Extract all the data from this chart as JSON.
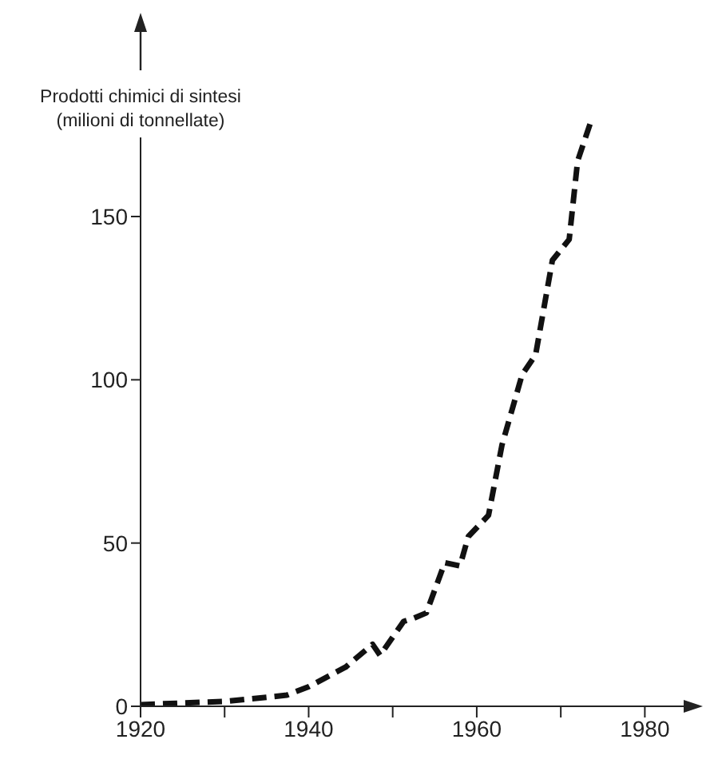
{
  "chart_data": {
    "type": "line",
    "ylabel": "Prodotti chimici di sintesi\n(milioni di tonnellate)",
    "x": [
      1920,
      1930,
      1937.4,
      1940,
      1944.4,
      1947.6,
      1948.5,
      1951.3,
      1952.5,
      1954,
      1956.2,
      1958,
      1959,
      1961.4,
      1963,
      1965,
      1965.4,
      1967,
      1969,
      1971,
      1972,
      1973.7
    ],
    "series": [
      {
        "color": "#111111",
        "values": [
          0.5,
          1.5,
          3.4,
          6,
          12,
          19,
          15.6,
          26,
          27,
          28.6,
          44,
          43,
          52,
          58.5,
          80,
          98,
          101.6,
          107.6,
          136.6,
          143,
          167,
          180
        ]
      }
    ],
    "xlim": [
      1920,
      1985
    ],
    "xticks": [
      1920,
      {
        "value": 1930,
        "label": null
      },
      1940,
      {
        "value": 1950,
        "label": null
      },
      1960,
      {
        "value": 1970,
        "label": null
      },
      1980
    ],
    "ylim": [
      0,
      185
    ],
    "yticks": [
      0,
      50,
      100,
      150
    ],
    "grid": false,
    "legend": false,
    "marker": "none",
    "line_style": "dashed"
  }
}
